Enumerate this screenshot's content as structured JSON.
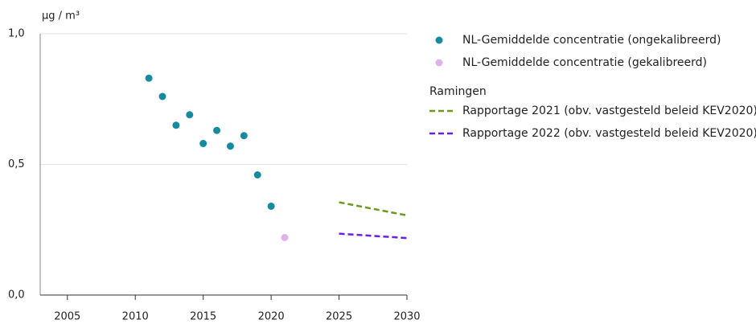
{
  "chart_data": {
    "type": "scatter",
    "y_axis_label": "µg / m³",
    "xlim": [
      2003,
      2030
    ],
    "xticks": [
      2005,
      2010,
      2015,
      2020,
      2025,
      2030
    ],
    "ylim": [
      0,
      1
    ],
    "yticks": [
      {
        "value": 0,
        "label": "0,0"
      },
      {
        "value": 0.5,
        "label": "0,5"
      },
      {
        "value": 1,
        "label": "1,0"
      }
    ],
    "grid": true,
    "legend_group_title": "Ramingen",
    "series": [
      {
        "name": "NL-Gemiddelde concentratie (ongekalibreerd)",
        "style": "points",
        "color": "#168a9e",
        "x": [
          2011,
          2012,
          2013,
          2014,
          2015,
          2016,
          2017,
          2018,
          2019,
          2020
        ],
        "values": [
          0.83,
          0.76,
          0.65,
          0.69,
          0.58,
          0.63,
          0.57,
          0.61,
          0.46,
          0.34
        ]
      },
      {
        "name": "NL-Gemiddelde concentratie (gekalibreerd)",
        "style": "points",
        "color": "#dcb4ea",
        "x": [
          2021
        ],
        "values": [
          0.22
        ]
      },
      {
        "name": "Rapportage 2021 (obv. vastgesteld beleid KEV2020)",
        "style": "dashed",
        "color": "#6a9a1a",
        "x": [
          2025,
          2030
        ],
        "values": [
          0.355,
          0.305
        ]
      },
      {
        "name": "Rapportage 2022 (obv. vastgesteld beleid KEV2020)",
        "style": "dashed",
        "color": "#6a1ee6",
        "x": [
          2025,
          2030
        ],
        "values": [
          0.235,
          0.218
        ]
      }
    ]
  }
}
